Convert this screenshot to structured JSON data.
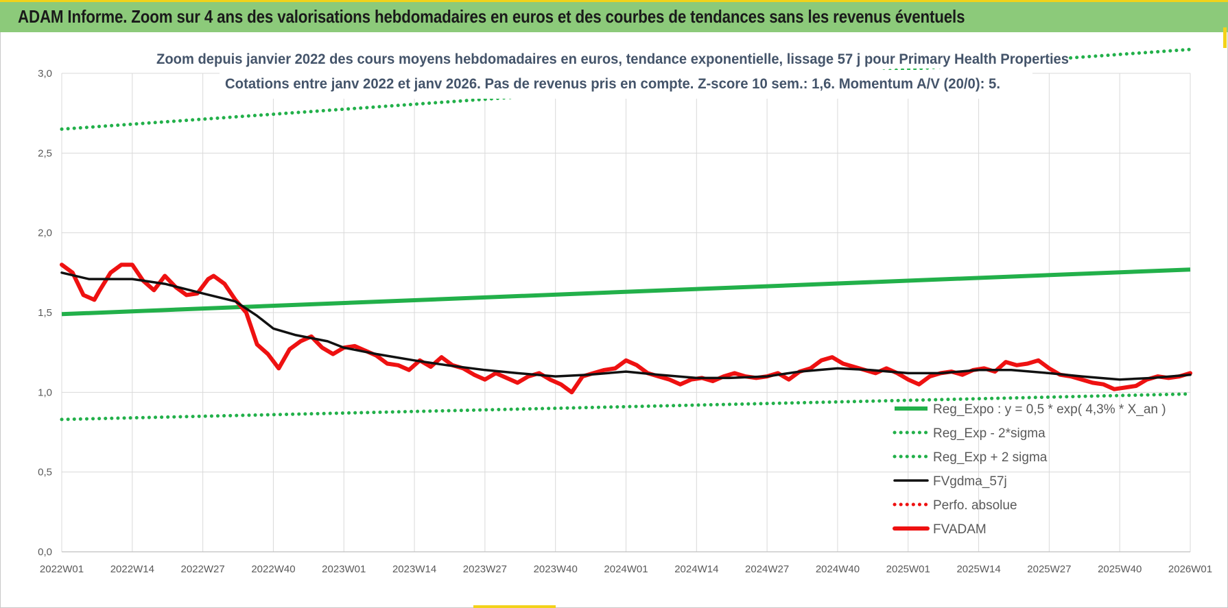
{
  "banner": {
    "title": "ADAM Informe. Zoom sur 4 ans des valorisations hebdomadaires en euros et des courbes de tendances sans les revenus éventuels"
  },
  "colors": {
    "banner_bg": "#8cca7a",
    "accent": "#f2d21a",
    "trend_green": "#22b04a",
    "price_red": "#ee1111",
    "smooth_black": "#111111",
    "title_text": "#44546a"
  },
  "chart_data": {
    "type": "line",
    "subtitle_line1": "Zoom depuis janvier 2022 des cours moyens hebdomadaires en euros, tendance exponentielle, lissage 57 j pour Primary Health Properties",
    "subtitle_line2": "Cotations entre janv 2022 et janv 2026. Pas de revenus pris en compte. Z-score 10 sem.: 1,6. Momentum A/V (20/0): 5.",
    "x_tick_labels": [
      "2022W01",
      "2022W14",
      "2022W27",
      "2022W40",
      "2023W01",
      "2023W14",
      "2023W27",
      "2023W40",
      "2024W01",
      "2024W14",
      "2024W27",
      "2024W40",
      "2025W01",
      "2025W14",
      "2025W27",
      "2025W40",
      "2026W01"
    ],
    "y_tick_labels": [
      "0,0",
      "0,5",
      "1,0",
      "1,5",
      "2,0",
      "2,5",
      "3,0"
    ],
    "ylim": [
      0,
      3
    ],
    "grid": true,
    "legend_position": "bottom-right",
    "series": [
      {
        "name": "Reg_Expo : y = 0,5 * exp( 4,3% *  X_an )",
        "style": "solid",
        "color": "#22b04a",
        "x": [
          "2022W01",
          "2026W01"
        ],
        "values": [
          1.49,
          1.77
        ]
      },
      {
        "name": "Reg_Exp - 2*sigma",
        "style": "dotted",
        "color": "#22b04a",
        "x": [
          "2022W01",
          "2026W01"
        ],
        "values": [
          0.83,
          0.99
        ]
      },
      {
        "name": "Reg_Exp + 2 sigma",
        "style": "dotted",
        "color": "#22b04a",
        "x": [
          "2022W01",
          "2026W01"
        ],
        "values": [
          2.65,
          3.15
        ]
      },
      {
        "name": "FVgdma_57j",
        "style": "solid",
        "color": "#111111",
        "x": [
          "2022W01",
          "2022W06",
          "2022W14",
          "2022W20",
          "2022W27",
          "2022W33",
          "2022W37",
          "2022W40",
          "2022W44",
          "2022W50",
          "2023W01",
          "2023W07",
          "2023W14",
          "2023W20",
          "2023W27",
          "2023W33",
          "2023W40",
          "2023W46",
          "2024W01",
          "2024W07",
          "2024W14",
          "2024W20",
          "2024W27",
          "2024W33",
          "2024W40",
          "2024W46",
          "2025W01",
          "2025W07",
          "2025W14",
          "2025W20",
          "2025W27",
          "2025W33",
          "2025W40",
          "2025W46",
          "2026W01"
        ],
        "values": [
          1.75,
          1.71,
          1.71,
          1.68,
          1.62,
          1.57,
          1.48,
          1.4,
          1.36,
          1.32,
          1.28,
          1.24,
          1.2,
          1.17,
          1.14,
          1.12,
          1.1,
          1.11,
          1.13,
          1.11,
          1.09,
          1.09,
          1.1,
          1.13,
          1.15,
          1.14,
          1.12,
          1.12,
          1.14,
          1.14,
          1.12,
          1.1,
          1.08,
          1.09,
          1.11
        ]
      },
      {
        "name": "Perfo. absolue",
        "style": "dotted",
        "color": "#ee1111",
        "x": [],
        "values": []
      },
      {
        "name": "FVADAM",
        "style": "solid",
        "color": "#ee1111",
        "x": [
          "2022W01",
          "2022W03",
          "2022W05",
          "2022W07",
          "2022W08",
          "2022W10",
          "2022W12",
          "2022W14",
          "2022W16",
          "2022W18",
          "2022W20",
          "2022W22",
          "2022W24",
          "2022W26",
          "2022W28",
          "2022W29",
          "2022W31",
          "2022W33",
          "2022W35",
          "2022W37",
          "2022W39",
          "2022W41",
          "2022W43",
          "2022W45",
          "2022W47",
          "2022W49",
          "2022W51",
          "2023W01",
          "2023W03",
          "2023W05",
          "2023W07",
          "2023W09",
          "2023W11",
          "2023W13",
          "2023W15",
          "2023W17",
          "2023W19",
          "2023W21",
          "2023W23",
          "2023W25",
          "2023W27",
          "2023W29",
          "2023W31",
          "2023W33",
          "2023W35",
          "2023W37",
          "2023W39",
          "2023W41",
          "2023W43",
          "2023W45",
          "2023W47",
          "2023W49",
          "2023W51",
          "2024W01",
          "2024W03",
          "2024W05",
          "2024W07",
          "2024W09",
          "2024W11",
          "2024W13",
          "2024W15",
          "2024W17",
          "2024W19",
          "2024W21",
          "2024W23",
          "2024W25",
          "2024W27",
          "2024W29",
          "2024W31",
          "2024W33",
          "2024W35",
          "2024W37",
          "2024W39",
          "2024W41",
          "2024W43",
          "2024W45",
          "2024W47",
          "2024W49",
          "2024W51",
          "2025W01",
          "2025W03",
          "2025W05",
          "2025W07",
          "2025W09",
          "2025W11",
          "2025W13",
          "2025W15",
          "2025W17",
          "2025W19",
          "2025W21",
          "2025W23",
          "2025W25",
          "2025W27",
          "2025W29",
          "2025W31",
          "2025W33",
          "2025W35",
          "2025W37",
          "2025W39",
          "2025W41",
          "2025W43",
          "2025W45",
          "2025W47",
          "2025W49",
          "2025W51",
          "2026W01"
        ],
        "values": [
          1.8,
          1.75,
          1.61,
          1.58,
          1.64,
          1.75,
          1.8,
          1.8,
          1.7,
          1.64,
          1.73,
          1.66,
          1.61,
          1.62,
          1.71,
          1.73,
          1.68,
          1.58,
          1.5,
          1.3,
          1.24,
          1.15,
          1.27,
          1.32,
          1.35,
          1.28,
          1.24,
          1.28,
          1.29,
          1.26,
          1.23,
          1.18,
          1.17,
          1.14,
          1.2,
          1.16,
          1.22,
          1.17,
          1.15,
          1.11,
          1.08,
          1.12,
          1.09,
          1.06,
          1.1,
          1.12,
          1.08,
          1.05,
          1.0,
          1.1,
          1.12,
          1.14,
          1.15,
          1.2,
          1.17,
          1.12,
          1.1,
          1.08,
          1.05,
          1.08,
          1.09,
          1.07,
          1.1,
          1.12,
          1.1,
          1.09,
          1.1,
          1.12,
          1.08,
          1.13,
          1.15,
          1.2,
          1.22,
          1.18,
          1.16,
          1.14,
          1.12,
          1.15,
          1.12,
          1.08,
          1.05,
          1.1,
          1.12,
          1.13,
          1.11,
          1.14,
          1.15,
          1.13,
          1.19,
          1.17,
          1.18,
          1.2,
          1.15,
          1.11,
          1.1,
          1.08,
          1.06,
          1.05,
          1.02,
          1.03,
          1.04,
          1.08,
          1.1,
          1.09,
          1.1,
          1.12
        ]
      }
    ]
  }
}
